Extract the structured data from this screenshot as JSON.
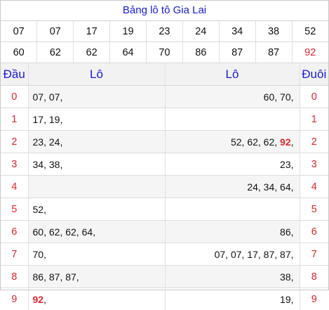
{
  "title": "Bảng lô tô Gia Lai",
  "numbers_row1": [
    "07",
    "07",
    "17",
    "19",
    "23",
    "24",
    "34",
    "38",
    "52"
  ],
  "numbers_row2": [
    "60",
    "62",
    "62",
    "64",
    "70",
    "86",
    "87",
    "87",
    "92"
  ],
  "highlight_number": "92",
  "headers": {
    "dau": "Đầu",
    "lo_left": "Lô",
    "lo_right": "Lô",
    "duoi": "Đuôi"
  },
  "rows": [
    {
      "dau": "0",
      "left": [
        "07",
        "07"
      ],
      "right": [
        "60",
        "70"
      ],
      "duoi": "0"
    },
    {
      "dau": "1",
      "left": [
        "17",
        "19"
      ],
      "right": [],
      "duoi": "1"
    },
    {
      "dau": "2",
      "left": [
        "23",
        "24"
      ],
      "right": [
        "52",
        "62",
        "62",
        "92"
      ],
      "duoi": "2"
    },
    {
      "dau": "3",
      "left": [
        "34",
        "38"
      ],
      "right": [
        "23"
      ],
      "duoi": "3"
    },
    {
      "dau": "4",
      "left": [],
      "right": [
        "24",
        "34",
        "64"
      ],
      "duoi": "4"
    },
    {
      "dau": "5",
      "left": [
        "52"
      ],
      "right": [],
      "duoi": "5"
    },
    {
      "dau": "6",
      "left": [
        "60",
        "62",
        "62",
        "64"
      ],
      "right": [
        "86"
      ],
      "duoi": "6"
    },
    {
      "dau": "7",
      "left": [
        "70"
      ],
      "right": [
        "07",
        "07",
        "17",
        "87",
        "87"
      ],
      "duoi": "7"
    },
    {
      "dau": "8",
      "left": [
        "86",
        "87",
        "87"
      ],
      "right": [
        "38"
      ],
      "duoi": "8"
    },
    {
      "dau": "9",
      "left": [
        "92"
      ],
      "right": [
        "19"
      ],
      "duoi": "9"
    }
  ],
  "colors": {
    "title": "#1a1adb",
    "red": "#e0262e",
    "header_bg": "#f2f2f2"
  }
}
